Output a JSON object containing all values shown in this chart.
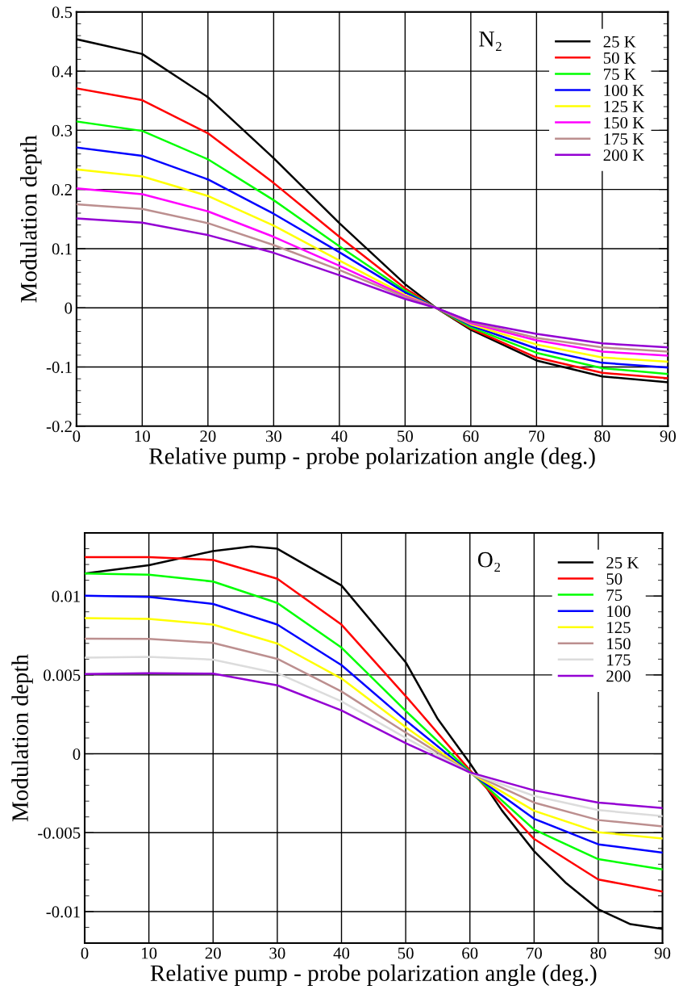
{
  "chart_data": [
    {
      "type": "line",
      "xlabel": "Relative pump - probe polarization angle (deg.)",
      "ylabel": "Modulation depth",
      "annotations": [
        "N₂"
      ],
      "x": [
        0,
        10,
        20,
        30,
        40,
        50,
        54.7,
        60,
        70,
        80,
        90
      ],
      "xlim": [
        0,
        90
      ],
      "xticks": [
        0,
        10,
        20,
        30,
        40,
        50,
        60,
        70,
        80,
        90
      ],
      "ylim": [
        -0.2,
        0.5
      ],
      "yticks": [
        -0.2,
        -0.1,
        0,
        0.1,
        0.2,
        0.3,
        0.4,
        0.5
      ],
      "grid": true,
      "legend": "top right",
      "series": [
        {
          "name": "25 K",
          "color": "#000000",
          "values": [
            0.454,
            0.429,
            0.356,
            0.253,
            0.143,
            0.04,
            0,
            -0.037,
            -0.089,
            -0.116,
            -0.126
          ]
        },
        {
          "name": "50 K",
          "color": "#ff0000",
          "values": [
            0.371,
            0.351,
            0.295,
            0.211,
            0.12,
            0.033,
            0,
            -0.035,
            -0.084,
            -0.11,
            -0.119
          ]
        },
        {
          "name": "75 K",
          "color": "#00ff00",
          "values": [
            0.315,
            0.299,
            0.251,
            0.182,
            0.104,
            0.029,
            0,
            -0.033,
            -0.076,
            -0.102,
            -0.112
          ]
        },
        {
          "name": "100 K",
          "color": "#0000ff",
          "values": [
            0.271,
            0.257,
            0.217,
            0.159,
            0.094,
            0.026,
            0,
            -0.03,
            -0.069,
            -0.093,
            -0.101
          ]
        },
        {
          "name": "125 K",
          "color": "#ffff00",
          "values": [
            0.234,
            0.222,
            0.189,
            0.139,
            0.08,
            0.022,
            0,
            -0.028,
            -0.062,
            -0.084,
            -0.091
          ]
        },
        {
          "name": "150 K",
          "color": "#ff00ff",
          "values": [
            0.202,
            0.192,
            0.163,
            0.12,
            0.071,
            0.02,
            0,
            -0.026,
            -0.055,
            -0.074,
            -0.081
          ]
        },
        {
          "name": "175 K",
          "color": "#bc8f8f",
          "values": [
            0.175,
            0.167,
            0.143,
            0.106,
            0.064,
            0.018,
            0,
            -0.024,
            -0.051,
            -0.067,
            -0.074
          ]
        },
        {
          "name": "200 K",
          "color": "#9400d3",
          "values": [
            0.151,
            0.144,
            0.123,
            0.093,
            0.055,
            0.015,
            0,
            -0.023,
            -0.044,
            -0.06,
            -0.067
          ]
        }
      ]
    },
    {
      "type": "line",
      "xlabel": "Relative pump - probe polarization angle (deg.)",
      "ylabel": "Modulation depth",
      "annotations": [
        "O₂"
      ],
      "x": [
        0,
        10,
        20,
        30,
        40,
        50,
        60,
        70,
        80,
        90
      ],
      "xlim": [
        0,
        90
      ],
      "xticks": [
        0,
        10,
        20,
        30,
        40,
        50,
        60,
        70,
        80,
        90
      ],
      "ylim": [
        -0.012,
        0.014
      ],
      "yticks": [
        -0.01,
        -0.005,
        0,
        0.005,
        0.01
      ],
      "grid": true,
      "legend": "top right",
      "series": [
        {
          "name": "25 K",
          "color": "#000000",
          "x": [
            0,
            10,
            20,
            26,
            30,
            40,
            50,
            55,
            60,
            65,
            70,
            75,
            80,
            85,
            90
          ],
          "values": [
            0.01143,
            0.01195,
            0.01285,
            0.01314,
            0.013,
            0.01067,
            0.0058,
            0.0022,
            -0.0006,
            -0.0036,
            -0.00617,
            -0.0082,
            -0.00985,
            -0.0108,
            -0.0111
          ]
        },
        {
          "name": "50",
          "color": "#ff0000",
          "values": [
            0.01246,
            0.01246,
            0.01229,
            0.0111,
            0.00819,
            0.00366,
            -0.00104,
            -0.0054,
            -0.00797,
            -0.00873
          ]
        },
        {
          "name": "75",
          "color": "#00ff00",
          "values": [
            0.01143,
            0.01135,
            0.01092,
            0.00956,
            0.00673,
            0.00272,
            -0.00113,
            -0.0048,
            -0.00668,
            -0.00733
          ]
        },
        {
          "name": "100",
          "color": "#0000ff",
          "values": [
            0.01002,
            0.00995,
            0.0095,
            0.00819,
            0.00562,
            0.00212,
            -0.00118,
            -0.00412,
            -0.00574,
            -0.00626
          ]
        },
        {
          "name": "125",
          "color": "#ffff00",
          "values": [
            0.0086,
            0.00855,
            0.00819,
            0.00699,
            0.00477,
            0.00169,
            -0.00121,
            -0.00361,
            -0.00497,
            -0.00537
          ]
        },
        {
          "name": "150",
          "color": "#bc8f8f",
          "values": [
            0.0073,
            0.00728,
            0.00703,
            0.00602,
            0.00395,
            0.00135,
            -0.00121,
            -0.00309,
            -0.0042,
            -0.0046
          ]
        },
        {
          "name": "175",
          "color": "#dcdcdc",
          "values": [
            0.0061,
            0.00614,
            0.00597,
            0.00511,
            0.00332,
            0.00101,
            -0.00121,
            -0.00267,
            -0.00357,
            -0.00395
          ]
        },
        {
          "name": "200",
          "color": "#9400d3",
          "values": [
            0.00506,
            0.00511,
            0.00508,
            0.00434,
            0.00275,
            0.00067,
            -0.00118,
            -0.00232,
            -0.00309,
            -0.00344
          ]
        }
      ]
    }
  ]
}
